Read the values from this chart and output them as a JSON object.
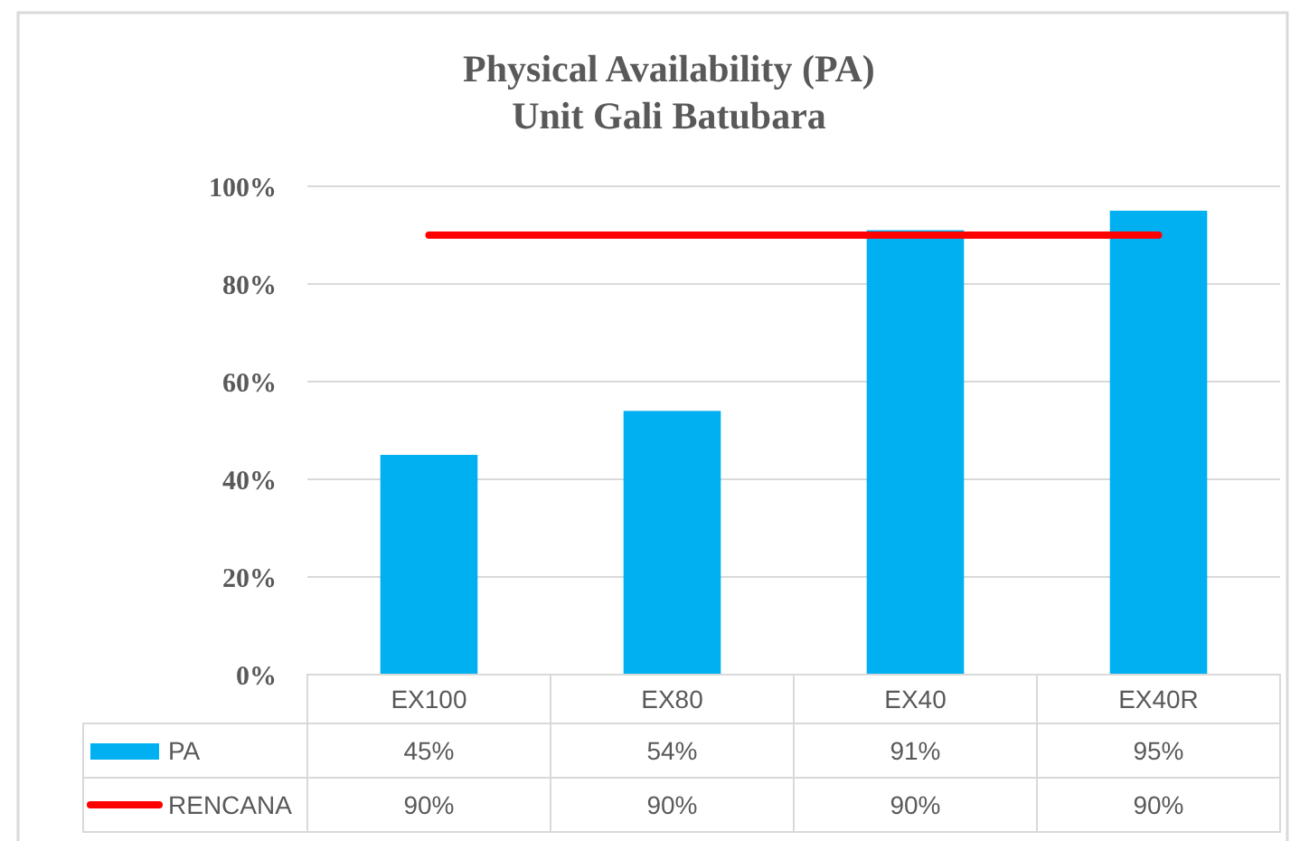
{
  "chart_data": {
    "type": "bar",
    "title": "Physical Availability (PA)\nUnit Gali  Batubara",
    "categories": [
      "EX100",
      "EX80",
      "EX40",
      "EX40R"
    ],
    "series": [
      {
        "name": "PA",
        "color": "#00b0f0",
        "values": [
          45,
          54,
          91,
          95
        ],
        "value_labels": [
          "45%",
          "54%",
          "91%",
          "95%"
        ]
      },
      {
        "name": "RENCANA",
        "type": "line",
        "color": "#ff0000",
        "values": [
          90,
          90,
          90,
          90
        ],
        "value_labels": [
          "90%",
          "90%",
          "90%",
          "90%"
        ]
      }
    ],
    "ylim": [
      0,
      100
    ],
    "yticks": [
      {
        "value": 0,
        "label": "0%"
      },
      {
        "value": 20,
        "label": "20%"
      },
      {
        "value": 40,
        "label": "40%"
      },
      {
        "value": 60,
        "label": "60%"
      },
      {
        "value": 80,
        "label": "80%"
      },
      {
        "value": 100,
        "label": "100%"
      }
    ],
    "grid": "y",
    "legend": "bottom",
    "marker": "none",
    "line_style": "solid"
  }
}
